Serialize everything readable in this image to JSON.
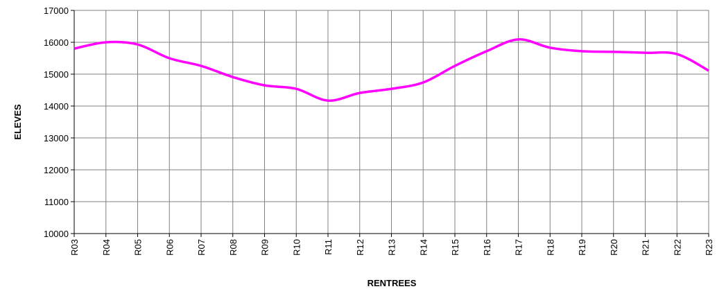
{
  "chart_data": {
    "type": "line",
    "x_label": "RENTREES",
    "y_label": "ELEVES",
    "categories": [
      "R03",
      "R04",
      "R05",
      "R06",
      "R07",
      "R08",
      "R09",
      "R10",
      "R11",
      "R12",
      "R13",
      "R14",
      "R15",
      "R16",
      "R17",
      "R18",
      "R19",
      "R20",
      "R21",
      "R22",
      "R23"
    ],
    "series": [
      {
        "name": "ELEVES",
        "color": "#ff00ff",
        "values": [
          15800,
          16000,
          15930,
          15500,
          15260,
          14910,
          14650,
          14540,
          14170,
          14410,
          14540,
          14740,
          15260,
          15720,
          16090,
          15830,
          15720,
          15700,
          15670,
          15630,
          15110
        ]
      }
    ],
    "ylim": [
      10000,
      17000
    ],
    "yticks": [
      10000,
      11000,
      12000,
      13000,
      14000,
      15000,
      16000,
      17000
    ],
    "grid": true,
    "smooth": true
  }
}
